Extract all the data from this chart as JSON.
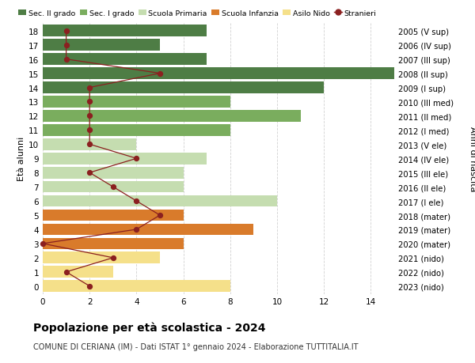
{
  "ages": [
    18,
    17,
    16,
    15,
    14,
    13,
    12,
    11,
    10,
    9,
    8,
    7,
    6,
    5,
    4,
    3,
    2,
    1,
    0
  ],
  "years": [
    "2005 (V sup)",
    "2006 (IV sup)",
    "2007 (III sup)",
    "2008 (II sup)",
    "2009 (I sup)",
    "2010 (III med)",
    "2011 (II med)",
    "2012 (I med)",
    "2013 (V ele)",
    "2014 (IV ele)",
    "2015 (III ele)",
    "2016 (II ele)",
    "2017 (I ele)",
    "2018 (mater)",
    "2019 (mater)",
    "2020 (mater)",
    "2021 (nido)",
    "2022 (nido)",
    "2023 (nido)"
  ],
  "bar_values": [
    7,
    5,
    7,
    15,
    12,
    8,
    11,
    8,
    4,
    7,
    6,
    6,
    10,
    6,
    9,
    6,
    5,
    3,
    8
  ],
  "bar_colors": [
    "#4e7d45",
    "#4e7d45",
    "#4e7d45",
    "#4e7d45",
    "#4e7d45",
    "#7aad5e",
    "#7aad5e",
    "#7aad5e",
    "#c5ddb0",
    "#c5ddb0",
    "#c5ddb0",
    "#c5ddb0",
    "#c5ddb0",
    "#d97b2b",
    "#d97b2b",
    "#d97b2b",
    "#f5e08a",
    "#f5e08a",
    "#f5e08a"
  ],
  "stranieri_values": [
    1,
    1,
    1,
    5,
    2,
    2,
    2,
    2,
    2,
    4,
    2,
    3,
    4,
    5,
    4,
    0,
    3,
    1,
    2
  ],
  "stranieri_color": "#8b2020",
  "legend_labels": [
    "Sec. II grado",
    "Sec. I grado",
    "Scuola Primaria",
    "Scuola Infanzia",
    "Asilo Nido",
    "Stranieri"
  ],
  "legend_colors": [
    "#4e7d45",
    "#7aad5e",
    "#c5ddb0",
    "#d97b2b",
    "#f5e08a",
    "#cc0000"
  ],
  "title": "Popolazione per età scolastica - 2024",
  "subtitle": "COMUNE DI CERIANA (IM) - Dati ISTAT 1° gennaio 2024 - Elaborazione TUTTITALIA.IT",
  "ylabel": "Età alunni",
  "ylabel2": "Anni di nascita",
  "xlim": [
    0,
    15
  ],
  "background_color": "#ffffff",
  "grid_color": "#cccccc",
  "bar_height": 0.82
}
